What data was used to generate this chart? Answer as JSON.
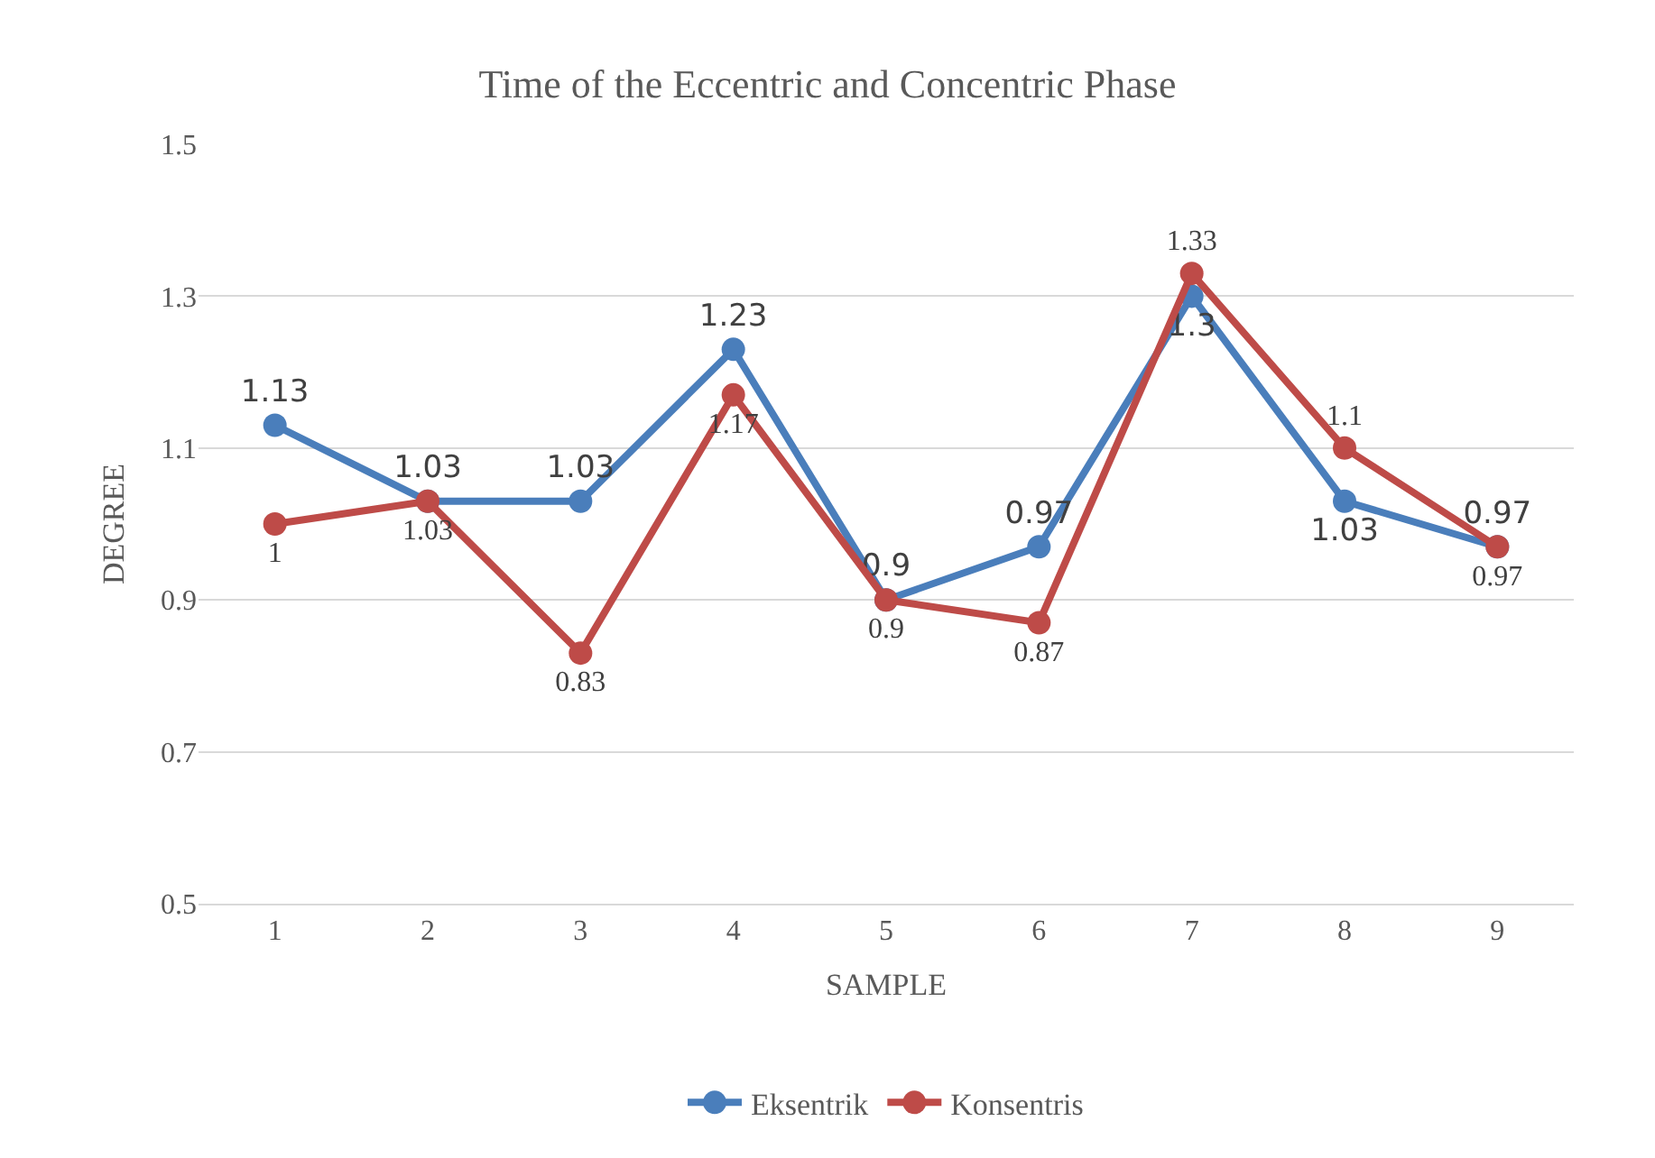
{
  "chart_data": {
    "type": "line",
    "title": "Time of the Eccentric and Concentric Phase",
    "xlabel": "SAMPLE",
    "ylabel": "DEGREE",
    "categories": [
      "1",
      "2",
      "3",
      "4",
      "5",
      "6",
      "7",
      "8",
      "9"
    ],
    "series": [
      {
        "name": "Eksentrik",
        "color": "#4a7ebb",
        "values": [
          1.13,
          1.03,
          1.03,
          1.23,
          0.9,
          0.97,
          1.3,
          1.03,
          0.97
        ]
      },
      {
        "name": "Konsentris",
        "color": "#be4b48",
        "values": [
          1,
          1.03,
          0.83,
          1.17,
          0.9,
          0.87,
          1.33,
          1.1,
          0.97
        ]
      }
    ],
    "ylim": [
      0.5,
      1.5
    ],
    "yticks": [
      0.5,
      0.7,
      0.9,
      1.1,
      1.3,
      1.5
    ],
    "grid": "y",
    "legend": "bottom",
    "marker": "circle",
    "line_style": "solid",
    "data_labels": true
  }
}
